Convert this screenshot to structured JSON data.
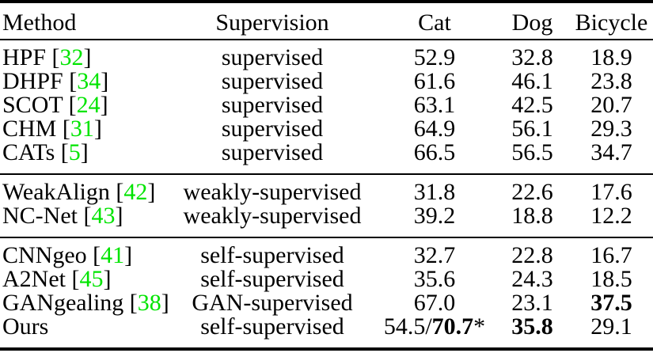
{
  "colors": {
    "background": "#ffffff",
    "text": "#000000",
    "rule": "#000000",
    "citation_green": "#00E400"
  },
  "table": {
    "headers": [
      {
        "label": "Method"
      },
      {
        "label": "Supervision"
      },
      {
        "label": "Cat"
      },
      {
        "label": "Dog"
      },
      {
        "label": "Bicycle"
      }
    ],
    "groups": [
      {
        "rows": [
          {
            "method": "HPF",
            "citation": "32",
            "supervision": "supervised",
            "cat": [
              {
                "t": "52.9"
              }
            ],
            "dog": [
              {
                "t": "32.8"
              }
            ],
            "bicycle": [
              {
                "t": "18.9"
              }
            ]
          },
          {
            "method": "DHPF",
            "citation": "34",
            "supervision": "supervised",
            "cat": [
              {
                "t": "61.6"
              }
            ],
            "dog": [
              {
                "t": "46.1"
              }
            ],
            "bicycle": [
              {
                "t": "23.8"
              }
            ]
          },
          {
            "method": "SCOT",
            "citation": "24",
            "supervision": "supervised",
            "cat": [
              {
                "t": "63.1"
              }
            ],
            "dog": [
              {
                "t": "42.5"
              }
            ],
            "bicycle": [
              {
                "t": "20.7"
              }
            ]
          },
          {
            "method": "CHM",
            "citation": "31",
            "supervision": "supervised",
            "cat": [
              {
                "t": "64.9"
              }
            ],
            "dog": [
              {
                "t": "56.1"
              }
            ],
            "bicycle": [
              {
                "t": "29.3"
              }
            ]
          },
          {
            "method": "CATs",
            "citation": "5",
            "supervision": "supervised",
            "cat": [
              {
                "t": "66.5"
              }
            ],
            "dog": [
              {
                "t": "56.5"
              }
            ],
            "bicycle": [
              {
                "t": "34.7"
              }
            ]
          }
        ]
      },
      {
        "rows": [
          {
            "method": "WeakAlign",
            "citation": "42",
            "supervision": "weakly-supervised",
            "cat": [
              {
                "t": "31.8"
              }
            ],
            "dog": [
              {
                "t": "22.6"
              }
            ],
            "bicycle": [
              {
                "t": "17.6"
              }
            ]
          },
          {
            "method": "NC-Net",
            "citation": "43",
            "supervision": "weakly-supervised",
            "cat": [
              {
                "t": "39.2"
              }
            ],
            "dog": [
              {
                "t": "18.8"
              }
            ],
            "bicycle": [
              {
                "t": "12.2"
              }
            ]
          }
        ]
      },
      {
        "rows": [
          {
            "method": "CNNgeo",
            "citation": "41",
            "supervision": "self-supervised",
            "cat": [
              {
                "t": "32.7"
              }
            ],
            "dog": [
              {
                "t": "22.8"
              }
            ],
            "bicycle": [
              {
                "t": "16.7"
              }
            ]
          },
          {
            "method": "A2Net",
            "citation": "45",
            "supervision": "self-supervised",
            "cat": [
              {
                "t": "35.6"
              }
            ],
            "dog": [
              {
                "t": "24.3"
              }
            ],
            "bicycle": [
              {
                "t": "18.5"
              }
            ]
          },
          {
            "method": "GANgealing",
            "citation": "38",
            "supervision": "GAN-supervised",
            "cat": [
              {
                "t": "67.0"
              }
            ],
            "dog": [
              {
                "t": "23.1"
              }
            ],
            "bicycle": [
              {
                "t": "37.5",
                "b": true
              }
            ]
          },
          {
            "method": "Ours",
            "citation": null,
            "supervision": "self-supervised",
            "cat": [
              {
                "t": "54.5/"
              },
              {
                "t": "70.7",
                "b": true
              },
              {
                "t": "*"
              }
            ],
            "dog": [
              {
                "t": "35.8",
                "b": true
              }
            ],
            "bicycle": [
              {
                "t": "29.1"
              }
            ]
          }
        ]
      }
    ]
  }
}
